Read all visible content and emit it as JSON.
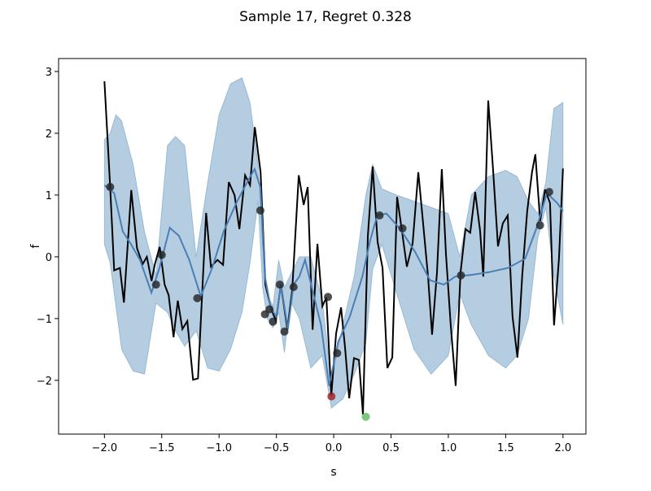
{
  "chart_data": {
    "type": "line",
    "title": "Sample 17, Regret 0.328",
    "xlabel": "s",
    "ylabel": "f",
    "xlim": [
      -2.4,
      2.2
    ],
    "ylim": [
      -2.87,
      3.21
    ],
    "xticks": [
      {
        "value": -2,
        "label": "−2.0"
      },
      {
        "value": -1.5,
        "label": "−1.5"
      },
      {
        "value": -1,
        "label": "−1.0"
      },
      {
        "value": -0.5,
        "label": "−0.5"
      },
      {
        "value": 0,
        "label": "0.0"
      },
      {
        "value": 0.5,
        "label": "0.5"
      },
      {
        "value": 1,
        "label": "1.0"
      },
      {
        "value": 1.5,
        "label": "1.5"
      },
      {
        "value": 2,
        "label": "2.0"
      }
    ],
    "yticks": [
      {
        "value": -2,
        "label": "−2"
      },
      {
        "value": -1,
        "label": "−1"
      },
      0,
      1,
      2,
      3
    ],
    "band": {
      "color": "#4682b4",
      "opacity": 0.4,
      "x": [
        -2,
        -1.95,
        -1.9,
        -1.85,
        -1.75,
        -1.65,
        -1.55,
        -1.45,
        -1.38,
        -1.3,
        -1.2,
        -1.1,
        -1.0,
        -0.9,
        -0.8,
        -0.73,
        -0.66,
        -0.62,
        -0.58,
        -0.53,
        -0.48,
        -0.43,
        -0.38,
        -0.3,
        -0.2,
        -0.1,
        -0.02,
        0.08,
        0.18,
        0.28,
        0.34,
        0.42,
        0.55,
        0.7,
        0.85,
        1.0,
        1.1,
        1.2,
        1.35,
        1.5,
        1.6,
        1.7,
        1.78,
        1.85,
        1.92,
        2.0
      ],
      "upper": [
        1.9,
        2.0,
        2.3,
        2.2,
        1.5,
        0.4,
        -0.3,
        1.8,
        1.95,
        1.8,
        0.0,
        1.2,
        2.3,
        2.8,
        2.9,
        2.5,
        1.5,
        0.2,
        -0.6,
        -0.8,
        -0.05,
        -0.5,
        -0.3,
        0.0,
        0.0,
        -0.7,
        -2.0,
        -1.1,
        -0.3,
        1.0,
        1.5,
        1.1,
        1.0,
        0.9,
        0.8,
        0.7,
        0.0,
        1.0,
        1.3,
        1.4,
        1.3,
        0.9,
        0.7,
        1.2,
        2.4,
        2.5
      ],
      "lower": [
        0.2,
        -0.1,
        -0.8,
        -1.5,
        -1.85,
        -1.9,
        -0.75,
        -0.9,
        -1.2,
        -1.45,
        -1.2,
        -1.8,
        -1.85,
        -1.5,
        -0.9,
        -0.1,
        0.9,
        -0.5,
        -1.0,
        -1.15,
        -0.9,
        -1.55,
        -0.7,
        -1.0,
        -1.8,
        -1.6,
        -2.45,
        -2.3,
        -1.9,
        -1.4,
        -0.2,
        0.2,
        -0.6,
        -1.5,
        -1.9,
        -1.6,
        -0.6,
        -1.1,
        -1.6,
        -1.8,
        -1.6,
        -1.0,
        0.3,
        0.8,
        -0.3,
        -1.1
      ]
    },
    "series": [
      {
        "color": "#000000",
        "x": [
          -2.0,
          -1.95,
          -1.915,
          -1.865,
          -1.83,
          -1.766,
          -1.716,
          -1.667,
          -1.63,
          -1.589,
          -1.56,
          -1.518,
          -1.475,
          -1.44,
          -1.397,
          -1.36,
          -1.32,
          -1.277,
          -1.227,
          -1.184,
          -1.113,
          -1.071,
          -1.014,
          -0.965,
          -0.915,
          -0.865,
          -0.823,
          -0.773,
          -0.73,
          -0.688,
          -0.638,
          -0.596,
          -0.546,
          -0.504,
          -0.461,
          -0.404,
          -0.362,
          -0.305,
          -0.262,
          -0.227,
          -0.184,
          -0.142,
          -0.099,
          -0.064,
          -0.021,
          0.021,
          0.064,
          0.099,
          0.135,
          0.177,
          0.22,
          0.255,
          0.298,
          0.34,
          0.383,
          0.426,
          0.468,
          0.511,
          0.553,
          0.596,
          0.638,
          0.688,
          0.738,
          0.78,
          0.823,
          0.858,
          0.901,
          0.943,
          0.979,
          1.021,
          1.064,
          1.106,
          1.149,
          1.191,
          1.234,
          1.277,
          1.305,
          1.348,
          1.39,
          1.433,
          1.475,
          1.518,
          1.56,
          1.603,
          1.645,
          1.688,
          1.73,
          1.759,
          1.801,
          1.844,
          1.887,
          1.922,
          1.965,
          2.0
        ],
        "values": [
          2.84,
          1.13,
          -0.22,
          -0.18,
          -0.74,
          1.08,
          0.14,
          -0.12,
          0,
          -0.39,
          -0.12,
          0.16,
          -0.45,
          -0.62,
          -1.3,
          -0.71,
          -1.17,
          -1.04,
          -1.99,
          -1.97,
          0.71,
          -0.16,
          -0.05,
          -0.13,
          1.21,
          1.0,
          0.45,
          1.32,
          1.16,
          2.1,
          1.37,
          -0.45,
          -0.84,
          -1.04,
          -0.45,
          -1.18,
          -0.54,
          1.32,
          0.84,
          1.13,
          -1.18,
          0.21,
          -0.8,
          -0.66,
          -2.24,
          -1.24,
          -0.82,
          -1.47,
          -2.29,
          -1.64,
          -1.67,
          -2.55,
          0.34,
          1.46,
          0.24,
          -0.18,
          -1.8,
          -1.63,
          0.97,
          0.41,
          -0.16,
          0.21,
          1.37,
          0.54,
          -0.32,
          -1.26,
          -0.25,
          1.42,
          0.05,
          -1.11,
          -2.09,
          -0.26,
          0.45,
          0.39,
          1.05,
          0.42,
          -0.32,
          2.53,
          1.42,
          0.17,
          0.54,
          0.67,
          -0.97,
          -1.63,
          -0.29,
          0.74,
          1.37,
          1.66,
          0.58,
          1.09,
          0.87,
          -1.11,
          -0.03,
          1.43
        ]
      },
      {
        "color": "#4a7fb5",
        "x": [
          -2,
          -1.915,
          -1.84,
          -1.77,
          -1.69,
          -1.59,
          -1.52,
          -1.43,
          -1.35,
          -1.26,
          -1.16,
          -1.06,
          -0.96,
          -0.85,
          -0.74,
          -0.69,
          -0.64,
          -0.6,
          -0.55,
          -0.5,
          -0.46,
          -0.4,
          -0.35,
          -0.3,
          -0.25,
          -0.18,
          -0.11,
          -0.04,
          0.04,
          0.14,
          0.25,
          0.32,
          0.38,
          0.46,
          0.58,
          0.71,
          0.84,
          0.96,
          1.06,
          1.21,
          1.35,
          1.52,
          1.67,
          1.77,
          1.86,
          1.95,
          2.0
        ],
        "values": [
          1.16,
          1.03,
          0.41,
          0.21,
          -0.05,
          -0.58,
          -0.18,
          0.47,
          0.34,
          -0.05,
          -0.64,
          -0.18,
          0.41,
          0.87,
          1.26,
          1.42,
          1.13,
          -0.32,
          -0.82,
          -0.97,
          -0.45,
          -1.17,
          -0.45,
          -0.32,
          -0.05,
          -0.58,
          -1.11,
          -2.09,
          -1.37,
          -0.97,
          -0.32,
          0.28,
          0.67,
          0.7,
          0.45,
          0.08,
          -0.38,
          -0.45,
          -0.32,
          -0.29,
          -0.25,
          -0.18,
          -0.03,
          0.47,
          1.03,
          0.87,
          0.74
        ]
      }
    ],
    "points": [
      {
        "color": "#222222",
        "x": [
          -1.95,
          -1.55,
          -1.5,
          -1.19,
          -0.64,
          -0.6,
          -0.56,
          -0.53,
          -0.47,
          -0.43,
          -0.35,
          -0.05,
          0.03,
          0.4,
          0.6,
          1.11,
          1.8,
          1.88
        ],
        "values": [
          1.13,
          -0.45,
          0.03,
          -0.67,
          0.75,
          -0.93,
          -0.85,
          -1.05,
          -0.45,
          -1.21,
          -0.49,
          -0.65,
          -1.56,
          0.67,
          0.46,
          -0.3,
          0.51,
          1.05
        ]
      },
      {
        "color": "#9e1b22",
        "x": [
          -0.02
        ],
        "values": [
          -2.26
        ]
      },
      {
        "color": "#5cb85c",
        "x": [
          0.28
        ],
        "values": [
          -2.59
        ]
      }
    ]
  }
}
